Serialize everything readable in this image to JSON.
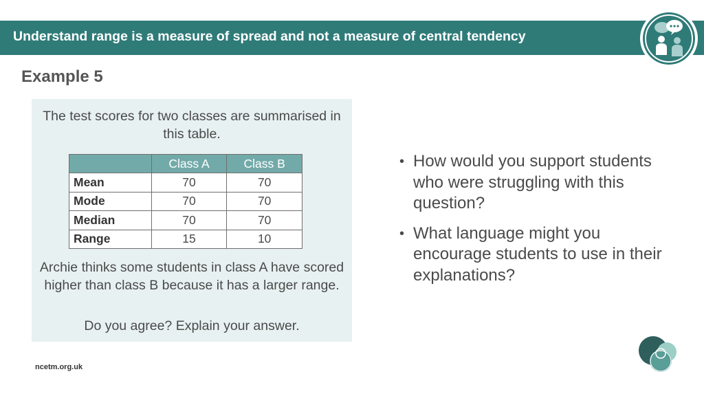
{
  "header": {
    "title": "Understand range is a measure of spread and not a measure of central tendency",
    "bar_color": "#2f7b78",
    "logo_icon": "discussion-people-icon"
  },
  "example": {
    "heading": "Example 5",
    "intro": "The test scores for two classes are summarised in this table.",
    "table": {
      "columns": [
        "",
        "Class A",
        "Class B"
      ],
      "rows": [
        {
          "label": "Mean",
          "a": "70",
          "b": "70"
        },
        {
          "label": "Mode",
          "a": "70",
          "b": "70"
        },
        {
          "label": "Median",
          "a": "70",
          "b": "70"
        },
        {
          "label": "Range",
          "a": "15",
          "b": "10"
        }
      ]
    },
    "claim": "Archie thinks some students in class A have scored higher than class B because it has a larger range.",
    "task": "Do you agree? Explain your answer.",
    "box_color": "#e8f1f1",
    "table_header_color": "#72aaa9"
  },
  "prompts": [
    "How would you support students who were struggling with this question?",
    "What language might you encourage students to use in their explanations?"
  ],
  "footer": {
    "url": "ncetm.org.uk",
    "logo_icon": "ncetm-circles-logo"
  }
}
